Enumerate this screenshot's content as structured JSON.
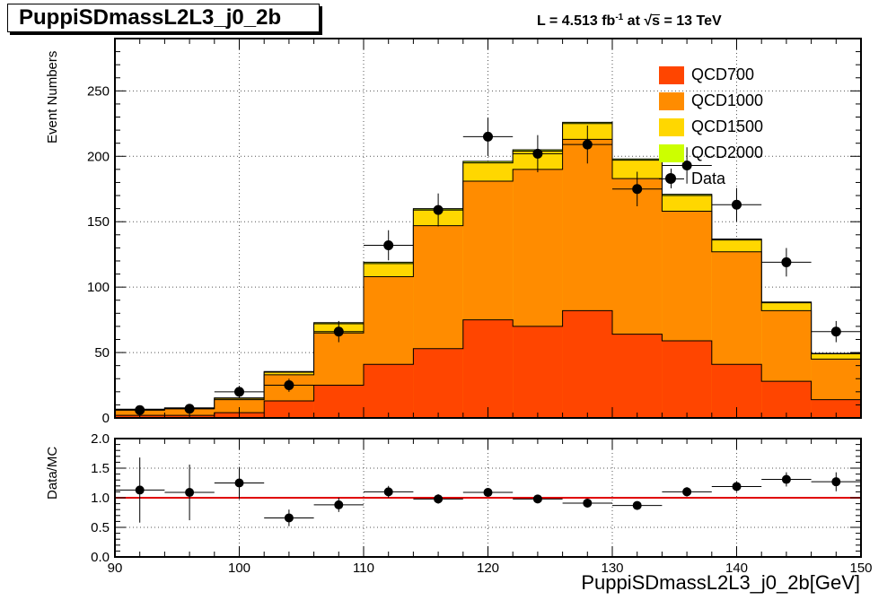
{
  "header": {
    "title": "PuppiSDmassL2L3_j0_2b",
    "lumi_prefix": "L = 4.513 fb",
    "lumi_exp": "-1",
    "lumi_mid": " at  ",
    "lumi_sqrt": "s",
    "lumi_suffix": " = 13 TeV"
  },
  "chart_data": [
    {
      "type": "bar",
      "stacked": true,
      "xlabel": "PuppiSDmassL2L3_j0_2b[GeV]",
      "ylabel": "Event Numbers",
      "xlim": [
        90,
        150
      ],
      "ylim": [
        0,
        290
      ],
      "bin_edges": [
        90,
        94,
        98,
        102,
        106,
        110,
        114,
        118,
        122,
        126,
        130,
        134,
        138,
        142,
        146,
        150
      ],
      "x_ticks": [
        90,
        100,
        110,
        120,
        130,
        140,
        150
      ],
      "y_ticks": [
        0,
        50,
        100,
        150,
        200,
        250
      ],
      "grid": true,
      "legend_position": "top-right",
      "series": [
        {
          "name": "QCD700",
          "color": "#ff4500",
          "values": [
            2,
            2,
            4,
            13,
            25,
            41,
            53,
            75,
            70,
            82,
            64,
            59,
            41,
            28,
            14
          ]
        },
        {
          "name": "QCD1000",
          "color": "#ff8c00",
          "values": [
            4,
            5,
            10,
            20,
            40,
            67,
            94,
            106,
            120,
            131,
            119,
            99,
            86,
            54,
            31
          ]
        },
        {
          "name": "QCD1500",
          "color": "#ffd700",
          "values": [
            0.5,
            0.5,
            1,
            2,
            7,
            10,
            12,
            14,
            14,
            12,
            14,
            12,
            9,
            6,
            4
          ]
        },
        {
          "name": "QCD2000",
          "color": "#ccff00",
          "values": [
            0.2,
            0.2,
            0.3,
            0.5,
            0.8,
            1,
            1,
            1.2,
            1,
            1,
            1,
            1,
            0.8,
            0.6,
            0.4
          ]
        }
      ],
      "data": {
        "name": "Data",
        "x": [
          92,
          96,
          100,
          104,
          108,
          112,
          116,
          120,
          124,
          128,
          132,
          136,
          140,
          144,
          148
        ],
        "y": [
          6,
          7,
          20,
          25,
          66,
          132,
          159,
          215,
          202,
          209,
          175,
          193,
          163,
          119,
          66
        ],
        "err": [
          2.5,
          2.7,
          4.5,
          5,
          8.1,
          11.5,
          12.6,
          14.7,
          14.2,
          14.5,
          13.2,
          13.9,
          12.8,
          10.9,
          8.1
        ]
      }
    },
    {
      "type": "scatter",
      "xlabel": "PuppiSDmassL2L3_j0_2b[GeV]",
      "ylabel": "Data/MC",
      "xlim": [
        90,
        150
      ],
      "ylim": [
        0,
        2
      ],
      "x_ticks": [
        90,
        100,
        110,
        120,
        130,
        140,
        150
      ],
      "y_ticks": [
        "0.0",
        "0.5",
        "1.0",
        "1.5",
        "2.0"
      ],
      "grid": true,
      "reference_line": 1.0,
      "reference_color": "#e00000",
      "x": [
        92,
        96,
        100,
        104,
        108,
        112,
        116,
        120,
        124,
        128,
        132,
        136,
        140,
        144,
        148
      ],
      "y": [
        1.13,
        1.09,
        1.25,
        0.66,
        0.88,
        1.1,
        0.98,
        1.09,
        0.98,
        0.91,
        0.87,
        1.1,
        1.19,
        1.31,
        1.27
      ],
      "err": [
        0.55,
        0.47,
        0.27,
        0.14,
        0.12,
        0.1,
        0.08,
        0.07,
        0.07,
        0.06,
        0.07,
        0.08,
        0.09,
        0.12,
        0.16
      ]
    }
  ]
}
